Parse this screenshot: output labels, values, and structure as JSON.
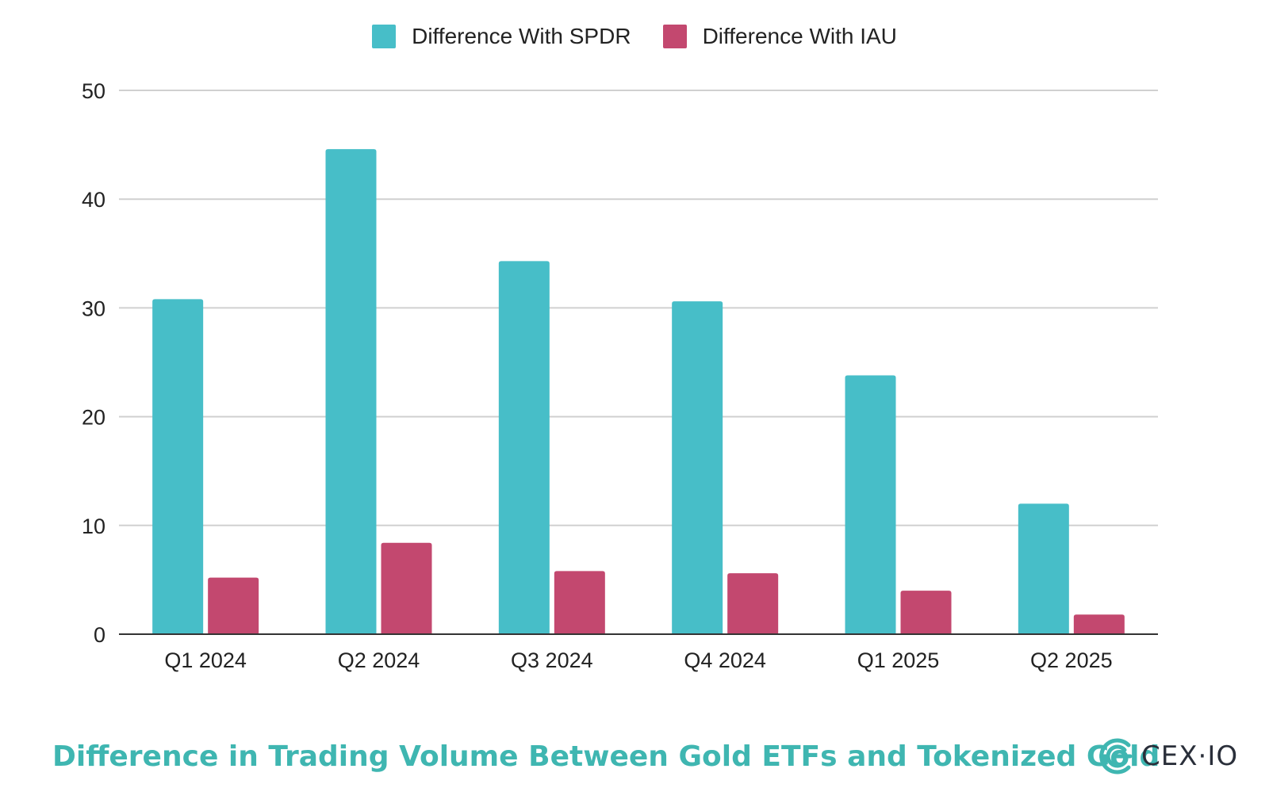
{
  "chart_data": {
    "type": "bar",
    "title": "",
    "xlabel": "",
    "ylabel": "",
    "categories": [
      "Q1 2024",
      "Q2 2024",
      "Q3 2024",
      "Q4 2024",
      "Q1 2025",
      "Q2 2025"
    ],
    "series": [
      {
        "name": "Difference With SPDR",
        "color": "#47bec8",
        "values": [
          30.8,
          44.6,
          34.3,
          30.6,
          23.8,
          12.0
        ]
      },
      {
        "name": "Difference With IAU",
        "color": "#c3486f",
        "values": [
          5.2,
          8.4,
          5.8,
          5.6,
          4.0,
          1.8
        ]
      }
    ],
    "ylim": [
      0,
      50
    ],
    "yticks": [
      0,
      10,
      20,
      30,
      40,
      50
    ],
    "ytick_labels": [
      "0",
      "10",
      "20",
      "30",
      "40",
      "50"
    ],
    "grid": true,
    "legend_position": "top-center"
  },
  "caption": "Difference in Trading Volume Between Gold ETFs and Tokenized Gold",
  "brand": {
    "name": "CEX·IO",
    "logo_icon": "cex-io-logo-icon",
    "logo_color": "#3fb6b1"
  },
  "colors": {
    "gridline": "#d0d0d0",
    "axis": "#333333",
    "caption": "#3fb6b1"
  }
}
